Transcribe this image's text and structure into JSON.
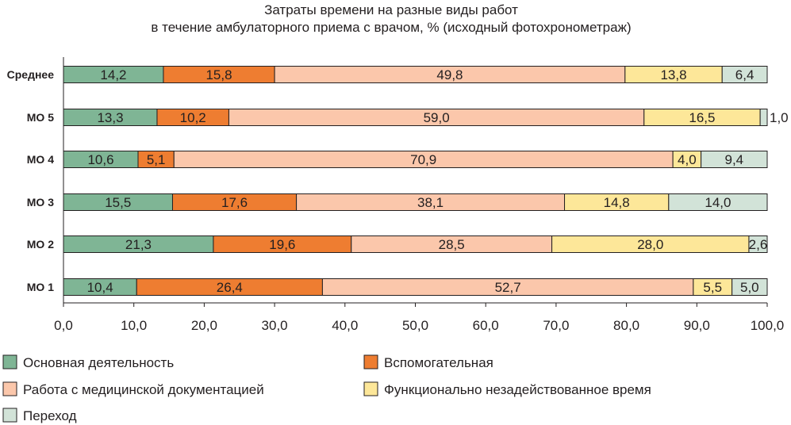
{
  "chart_data": {
    "type": "bar",
    "orientation": "horizontal",
    "stacked": true,
    "title": [
      "Затраты времени на разные виды работ",
      "в течение амбулаторного приема с врачом, % (исходный фотохронометраж)"
    ],
    "categories": [
      "Среднее",
      "МО 5",
      "МО 4",
      "МО 3",
      "МО 2",
      "МО 1"
    ],
    "series": [
      {
        "name": "Основная деятельность",
        "color": "#7fb595",
        "values": [
          14.2,
          13.3,
          10.6,
          15.5,
          21.3,
          10.4
        ],
        "labels": [
          "14,2",
          "13,3",
          "10,6",
          "15,5",
          "21,3",
          "10,4"
        ]
      },
      {
        "name": "Вспомогательная",
        "color": "#ee7d31",
        "values": [
          15.8,
          10.2,
          5.1,
          17.6,
          19.6,
          26.4
        ],
        "labels": [
          "15,8",
          "10,2",
          "5,1",
          "17,6",
          "19,6",
          "26,4"
        ]
      },
      {
        "name": "Работа с медицинской документацией",
        "color": "#fbc7ab",
        "values": [
          49.8,
          59.0,
          70.9,
          38.1,
          28.5,
          52.7
        ],
        "labels": [
          "49,8",
          "59,0",
          "70,9",
          "38,1",
          "28,5",
          "52,7"
        ]
      },
      {
        "name": "Функционально незадействованное время",
        "color": "#fde799",
        "values": [
          13.8,
          16.5,
          4.0,
          14.8,
          28.0,
          5.5
        ],
        "labels": [
          "13,8",
          "16,5",
          "4,0",
          "14,8",
          "28,0",
          "5,5"
        ]
      },
      {
        "name": "Переход",
        "color": "#d2e3d8",
        "values": [
          6.4,
          1.0,
          9.4,
          14.0,
          2.6,
          5.0
        ],
        "labels": [
          "6,4",
          "1,0",
          "9,4",
          "14,0",
          "2,6",
          "5,0"
        ]
      }
    ],
    "xlim": [
      0,
      100
    ],
    "xticks": [
      0,
      10,
      20,
      30,
      40,
      50,
      60,
      70,
      80,
      90,
      100
    ],
    "xtick_labels": [
      "0,0",
      "10,0",
      "20,0",
      "30,0",
      "40,0",
      "50,0",
      "60,0",
      "70,0",
      "80,0",
      "90,0",
      "100,0"
    ],
    "xlabel": "",
    "ylabel": "",
    "grid": false,
    "legend_position": "bottom"
  }
}
